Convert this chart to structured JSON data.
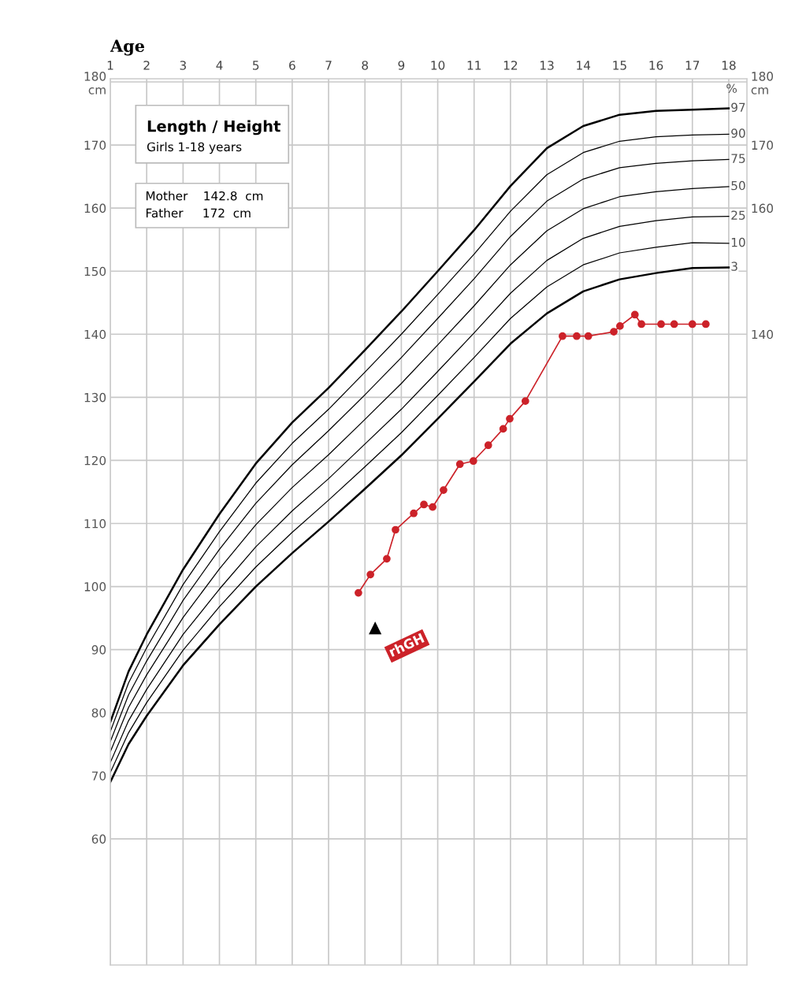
{
  "chart_data": {
    "type": "line",
    "title": "Length / Height",
    "subtitle": "Girls 1-18 years",
    "xlabel": "Age",
    "x": [
      1,
      1.5,
      2,
      3,
      4,
      5,
      6,
      7,
      8,
      9,
      10,
      11,
      12,
      13,
      14,
      15,
      16,
      17,
      18
    ],
    "series": [
      {
        "name": "97",
        "color": "#000000",
        "values": [
          78.5,
          86.5,
          92.4,
          102.7,
          111.5,
          119.5,
          126.0,
          131.5,
          137.5,
          143.6,
          150.0,
          156.5,
          163.5,
          169.5,
          173.0,
          174.8,
          175.4,
          175.6,
          175.8
        ]
      },
      {
        "name": "90",
        "color": "#000000",
        "values": [
          77.0,
          84.7,
          90.3,
          100.3,
          108.7,
          116.4,
          122.7,
          128.1,
          134.0,
          140.0,
          146.3,
          152.7,
          159.5,
          165.3,
          168.8,
          170.6,
          171.3,
          171.6,
          171.7
        ]
      },
      {
        "name": "75",
        "color": "#000000",
        "values": [
          75.4,
          82.8,
          88.2,
          97.8,
          105.9,
          113.2,
          119.3,
          124.7,
          130.4,
          136.3,
          142.5,
          148.8,
          155.5,
          161.1,
          164.6,
          166.4,
          167.1,
          167.5,
          167.7
        ]
      },
      {
        "name": "50",
        "color": "#000000",
        "values": [
          73.8,
          80.8,
          86.0,
          95.1,
          102.8,
          109.8,
          115.7,
          120.9,
          126.5,
          132.2,
          138.3,
          144.5,
          151.0,
          156.4,
          159.9,
          161.8,
          162.6,
          163.1,
          163.4
        ]
      },
      {
        "name": "25",
        "color": "#000000",
        "values": [
          72.1,
          78.7,
          83.7,
          92.4,
          99.6,
          106.3,
          112.0,
          117.1,
          122.6,
          128.1,
          134.1,
          140.2,
          146.5,
          151.7,
          155.2,
          157.1,
          158.0,
          158.6,
          158.7
        ]
      },
      {
        "name": "10",
        "color": "#000000",
        "values": [
          70.5,
          76.8,
          81.6,
          89.9,
          96.8,
          103.1,
          108.6,
          113.7,
          119.0,
          124.4,
          130.3,
          136.3,
          142.5,
          147.5,
          151.0,
          152.9,
          153.8,
          154.5,
          154.4
        ]
      },
      {
        "name": "3",
        "color": "#000000",
        "values": [
          69.0,
          75.0,
          79.5,
          87.5,
          94.0,
          100.0,
          105.3,
          110.3,
          115.5,
          120.8,
          126.6,
          132.5,
          138.5,
          143.3,
          146.8,
          148.7,
          149.7,
          150.5,
          150.6
        ]
      },
      {
        "color": "#cc2229",
        "marker": "circle",
        "x": [
          7.82,
          8.15,
          8.6,
          8.84,
          9.34,
          9.62,
          9.86,
          10.16,
          10.61,
          10.98,
          11.39,
          11.8,
          11.98,
          12.41,
          13.43,
          13.82,
          14.14,
          14.84,
          15.01,
          15.42,
          15.6,
          16.14,
          16.5,
          17.0,
          17.37
        ],
        "values": [
          99.0,
          101.9,
          104.4,
          109.0,
          111.6,
          113.0,
          112.6,
          115.3,
          119.4,
          119.9,
          122.4,
          125.0,
          126.6,
          129.4,
          139.7,
          139.7,
          139.7,
          140.4,
          141.3,
          143.1,
          141.6,
          141.6,
          141.6,
          141.6,
          141.6
        ]
      }
    ],
    "annotations": [
      "rhGH",
      "%",
      "Mother    142.8  cm\nFather     172  cm"
    ],
    "xlim": [
      1,
      18.5
    ],
    "xticks": [
      1,
      2,
      3,
      4,
      5,
      6,
      7,
      8,
      9,
      10,
      11,
      12,
      13,
      14,
      15,
      16,
      17,
      18
    ],
    "ylim": [
      40,
      180.5
    ],
    "yticks": [
      60,
      70,
      80,
      90,
      100,
      110,
      120,
      130,
      140,
      150,
      160,
      170,
      {
        "value": 180,
        "label": "180\ncm"
      }
    ],
    "y2lim": [
      40,
      180.5
    ],
    "y2ticks": [
      140,
      {
        "value": 150,
        "label": null
      },
      160,
      170,
      {
        "value": 180,
        "label": "180\ncm"
      }
    ],
    "grid": true,
    "marker": "none",
    "line_style": "solid"
  }
}
